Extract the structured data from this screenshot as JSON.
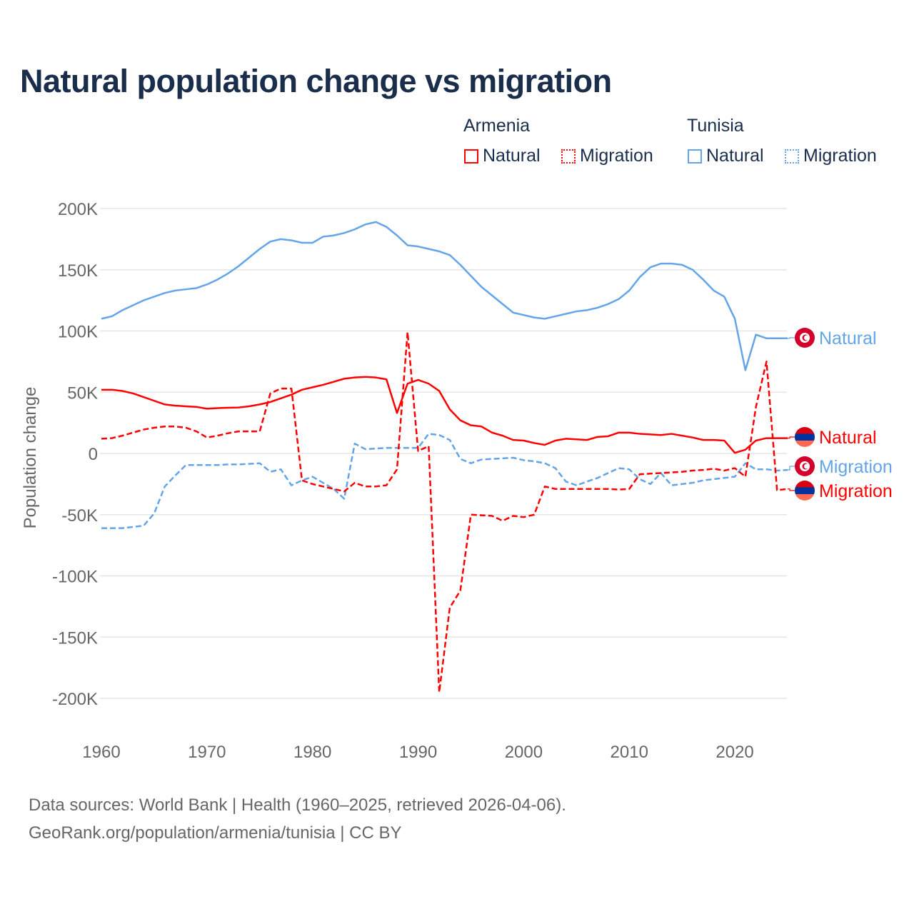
{
  "title": "Natural population change vs migration",
  "legend": {
    "groups": [
      {
        "name": "Armenia",
        "items": [
          {
            "label": "Natural",
            "style": "solid"
          },
          {
            "label": "Migration",
            "style": "dotted"
          }
        ],
        "color": "#ff0000"
      },
      {
        "name": "Tunisia",
        "items": [
          {
            "label": "Natural",
            "style": "solid"
          },
          {
            "label": "Migration",
            "style": "dotted"
          }
        ],
        "color": "#63a5e8"
      }
    ]
  },
  "footer": {
    "line1": "Data sources: World Bank | Health (1960–2025, retrieved 2026-04-06).",
    "line2": "GeoRank.org/population/armenia/tunisia | CC BY"
  },
  "chart_data": {
    "type": "line",
    "title": "Natural population change vs migration",
    "xlabel": "",
    "ylabel": "Population change",
    "xlim": [
      1960,
      2025
    ],
    "ylim": [
      -200000,
      200000
    ],
    "grid": true,
    "legend_placement": "top-right",
    "x_ticks": [
      1960,
      1970,
      1980,
      1990,
      2000,
      2010,
      2020
    ],
    "x_tick_labels": [
      "1960",
      "1970",
      "1980",
      "1990",
      "2000",
      "2010",
      "2020"
    ],
    "y_ticks": [
      200000,
      150000,
      100000,
      50000,
      0,
      -50000,
      -100000,
      -150000,
      -200000
    ],
    "y_tick_labels": [
      "200K",
      "150K",
      "100K",
      "50K",
      "0",
      "-50K",
      "-100K",
      "-150K",
      "-200K"
    ],
    "x_start": 1960,
    "series": [
      {
        "name": "Tunisia Natural",
        "country": "Tunisia",
        "end_label": "Natural",
        "color": "#63a5e8",
        "dash": "solid",
        "flag": "tunisia",
        "values_k": [
          110,
          112,
          117,
          121,
          125,
          128,
          131,
          133,
          134,
          135,
          138,
          142,
          147,
          153,
          160,
          167,
          173,
          175,
          174,
          172,
          172,
          177,
          178,
          180,
          183,
          187,
          189,
          185,
          178,
          170,
          169,
          167,
          165,
          162,
          154,
          145,
          136,
          129,
          122,
          115,
          113,
          111,
          110,
          112,
          114,
          116,
          117,
          119,
          122,
          126,
          133,
          144,
          152,
          155,
          155,
          154,
          150,
          142,
          133,
          128,
          110,
          68,
          97,
          94,
          94,
          94
        ]
      },
      {
        "name": "Armenia Natural",
        "country": "Armenia",
        "end_label": "Natural",
        "color": "#ff0000",
        "dash": "solid",
        "flag": "armenia",
        "values_k": [
          52,
          52,
          51,
          49,
          46,
          43,
          40,
          39,
          38.5,
          38,
          36.5,
          37,
          37.3,
          37.5,
          38.5,
          40,
          42,
          45,
          48,
          52,
          54,
          56,
          58.5,
          61,
          62,
          62.5,
          62,
          60.5,
          33,
          57,
          60,
          57,
          51,
          36,
          27,
          23,
          22,
          17,
          14.5,
          11,
          10.5,
          8.5,
          7,
          10.5,
          12,
          11.5,
          11,
          13.5,
          14,
          17,
          17,
          16,
          15.5,
          15,
          16,
          14.5,
          13,
          11,
          11,
          10.5,
          0.5,
          3,
          10.5,
          12.5,
          12.5,
          12.5
        ]
      },
      {
        "name": "Tunisia Migration",
        "country": "Tunisia",
        "end_label": "Migration",
        "color": "#63a5e8",
        "dash": "dashed",
        "flag": "tunisia",
        "values_k": [
          -61,
          -61,
          -61,
          -60,
          -59,
          -49,
          -27,
          -18,
          -9.5,
          -9.5,
          -9.5,
          -9.5,
          -9,
          -9,
          -8.5,
          -8,
          -15,
          -13,
          -26,
          -22,
          -19,
          -24,
          -29,
          -37,
          8,
          3.5,
          4,
          4.5,
          4.5,
          4.5,
          4.5,
          16,
          15,
          11,
          -4.5,
          -8,
          -5,
          -4.5,
          -4,
          -3.5,
          -5.5,
          -6.5,
          -8,
          -12,
          -23,
          -26,
          -23,
          -20,
          -16,
          -12,
          -13,
          -21,
          -25,
          -16,
          -26,
          -25,
          -24,
          -22,
          -21,
          -20,
          -19,
          -8,
          -13,
          -13,
          -14,
          -13.5
        ]
      },
      {
        "name": "Armenia Migration",
        "country": "Armenia",
        "end_label": "Migration",
        "color": "#ff0000",
        "dash": "dashed",
        "flag": "armenia",
        "values_k": [
          12,
          12.5,
          14.5,
          17,
          19.5,
          21,
          22,
          22,
          21,
          18,
          13,
          14.5,
          16.5,
          18,
          18,
          18,
          49,
          53,
          53,
          -22,
          -25,
          -27,
          -29,
          -31,
          -24,
          -27,
          -27,
          -26,
          -13,
          99,
          2,
          6,
          -195,
          -126,
          -112,
          -50,
          -50.5,
          -51,
          -55,
          -51,
          -52,
          -50,
          -27,
          -29,
          -29,
          -29,
          -29,
          -29,
          -29,
          -29.5,
          -29,
          -17,
          -16.5,
          -16,
          -15.5,
          -15,
          -14,
          -13.5,
          -12.5,
          -14,
          -12,
          -19,
          38,
          75,
          -30,
          -29
        ]
      }
    ]
  }
}
